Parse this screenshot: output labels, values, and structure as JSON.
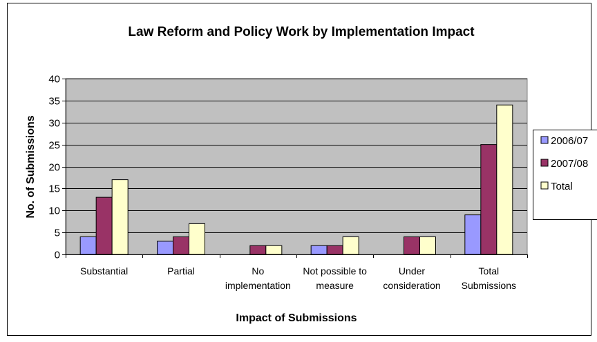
{
  "chart_data": {
    "type": "bar",
    "title": "Law Reform and Policy Work by Implementation Impact",
    "xlabel": "Impact of Submissions",
    "ylabel": "No. of Submissions",
    "ylim": [
      0,
      40
    ],
    "yticks": [
      0,
      5,
      10,
      15,
      20,
      25,
      30,
      35,
      40
    ],
    "grid": true,
    "legend_position": "right",
    "categories": [
      [
        "Substantial"
      ],
      [
        "Partial"
      ],
      [
        "No",
        "implementation"
      ],
      [
        "Not possible to",
        "measure"
      ],
      [
        "Under",
        "consideration"
      ],
      [
        "Total",
        "Submissions"
      ]
    ],
    "series": [
      {
        "name": "2006/07",
        "color": "#9999ff",
        "values": [
          4,
          3,
          0,
          2,
          0,
          9
        ]
      },
      {
        "name": "2007/08",
        "color": "#993366",
        "values": [
          13,
          4,
          2,
          2,
          4,
          25
        ]
      },
      {
        "name": "Total",
        "color": "#ffffcc",
        "values": [
          17,
          7,
          2,
          4,
          4,
          34
        ]
      }
    ],
    "plot_background": "#c0c0c0"
  }
}
